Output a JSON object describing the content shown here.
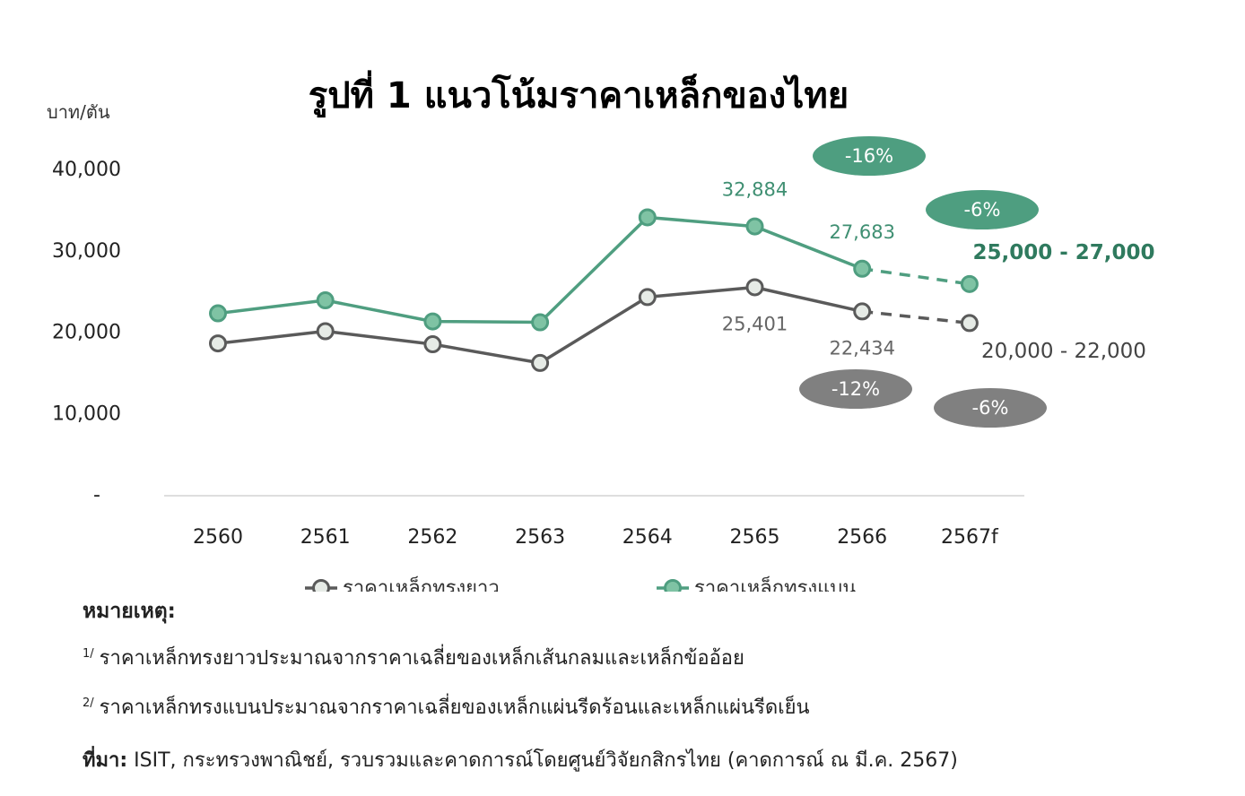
{
  "chart_data": {
    "type": "line",
    "title": "รูปที่ 1 แนวโน้มราคาเหล็กของไทย",
    "ylabel": "บาท/ตัน",
    "categories": [
      "2560",
      "2561",
      "2562",
      "2563",
      "2564",
      "2565",
      "2566",
      "2567f"
    ],
    "ylim": [
      0,
      40000
    ],
    "yticks": [
      "40,000",
      "30,000",
      "20,000",
      "10,000",
      "-"
    ],
    "ytick_values": [
      40000,
      30000,
      20000,
      10000,
      0
    ],
    "grid": false,
    "legend_position": "bottom",
    "series": [
      {
        "name": "ราคาเหล็กทรงยาว",
        "color": "#5a5a5a",
        "marker_fill": "#e6ebe6",
        "values": [
          18500,
          20000,
          18400,
          16100,
          24200,
          25401,
          22434,
          21000
        ],
        "forecast_from_index": 6,
        "data_labels": [
          {
            "index": 5,
            "text": "25,401"
          },
          {
            "index": 6,
            "text": "22,434"
          }
        ],
        "range_label": "20,000 - 22,000",
        "badges": [
          {
            "index": 6,
            "text": "-12%"
          },
          {
            "index": 7,
            "text": "-6%"
          }
        ]
      },
      {
        "name": "ราคาเหล็กทรงแบน",
        "color": "#4f9e80",
        "marker_fill": "#7fc3a4",
        "values": [
          22200,
          23800,
          21200,
          21100,
          34000,
          32884,
          27683,
          25800
        ],
        "forecast_from_index": 6,
        "data_labels": [
          {
            "index": 5,
            "text": "32,884"
          },
          {
            "index": 6,
            "text": "27,683"
          }
        ],
        "range_label": "25,000 - 27,000",
        "badges": [
          {
            "index": 6,
            "text": "-16%"
          },
          {
            "index": 7,
            "text": "-6%"
          }
        ]
      }
    ]
  },
  "colors": {
    "green_badge": "#4e9e80",
    "gray_badge": "#808080",
    "axis": "#d4d4d4"
  },
  "notes": {
    "heading": "หมายเหตุ:",
    "items": [
      {
        "mark": "1/",
        "text": "ราคาเหล็กทรงยาวประมาณจากราคาเฉลี่ยของเหล็กเส้นกลมและเหล็กข้ออ้อย"
      },
      {
        "mark": "2/",
        "text": "ราคาเหล็กทรงแบนประมาณจากราคาเฉลี่ยของเหล็กแผ่นรีดร้อนและเหล็กแผ่นรีดเย็น"
      }
    ],
    "source_label": "ที่มา:",
    "source_text": " ISIT, กระทรวงพาณิชย์, รวบรวมและคาดการณ์โดยศูนย์วิจัยกสิกรไทย (คาดการณ์ ณ มี.ค. 2567)"
  }
}
